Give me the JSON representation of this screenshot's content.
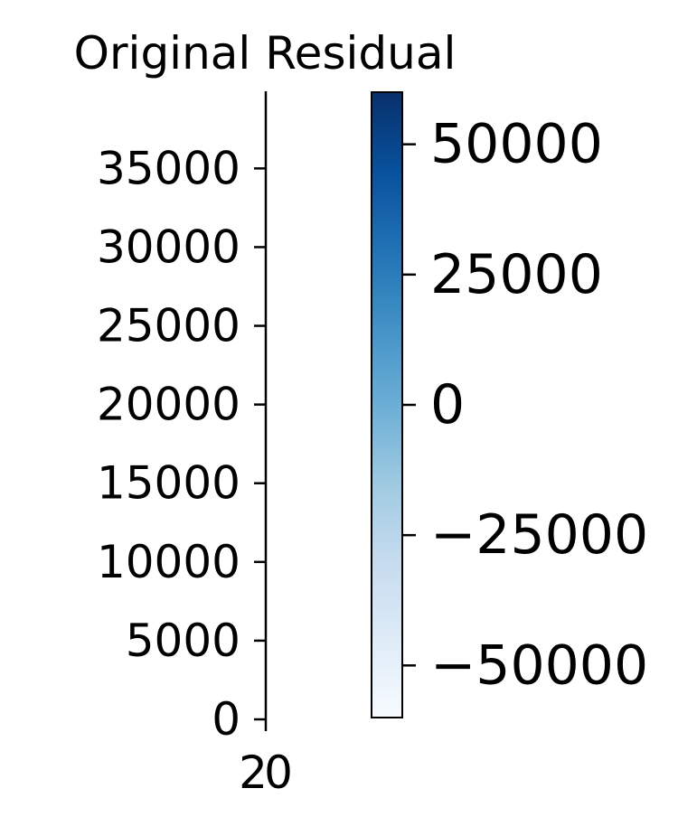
{
  "chart_data": {
    "type": "heatmap",
    "title": "Original Residual",
    "xlabel": "",
    "ylabel": "",
    "x_ticks": [
      {
        "value": 0,
        "label": "0"
      },
      {
        "value": 2,
        "label": "2"
      }
    ],
    "y_ticks": [
      {
        "value": 0,
        "label": "0"
      },
      {
        "value": 5000,
        "label": "5000"
      },
      {
        "value": 10000,
        "label": "10000"
      },
      {
        "value": 15000,
        "label": "15000"
      },
      {
        "value": 20000,
        "label": "20000"
      },
      {
        "value": 25000,
        "label": "25000"
      },
      {
        "value": 30000,
        "label": "30000"
      },
      {
        "value": 35000,
        "label": "35000"
      }
    ],
    "ylim": [
      0,
      39900
    ],
    "colorbar": {
      "cmap": "Blues",
      "range": [
        -60000,
        60000
      ],
      "ticks": [
        {
          "value": -50000,
          "label": "−50000"
        },
        {
          "value": -25000,
          "label": "−25000"
        },
        {
          "value": 0,
          "label": "0"
        },
        {
          "value": 25000,
          "label": "25000"
        },
        {
          "value": 50000,
          "label": "50000"
        }
      ],
      "colors": [
        "#f7fbff",
        "#deebf7",
        "#c6dbef",
        "#9ecae1",
        "#6baed6",
        "#4292c6",
        "#2171b5",
        "#08519c",
        "#08306b"
      ]
    },
    "grid": false
  }
}
